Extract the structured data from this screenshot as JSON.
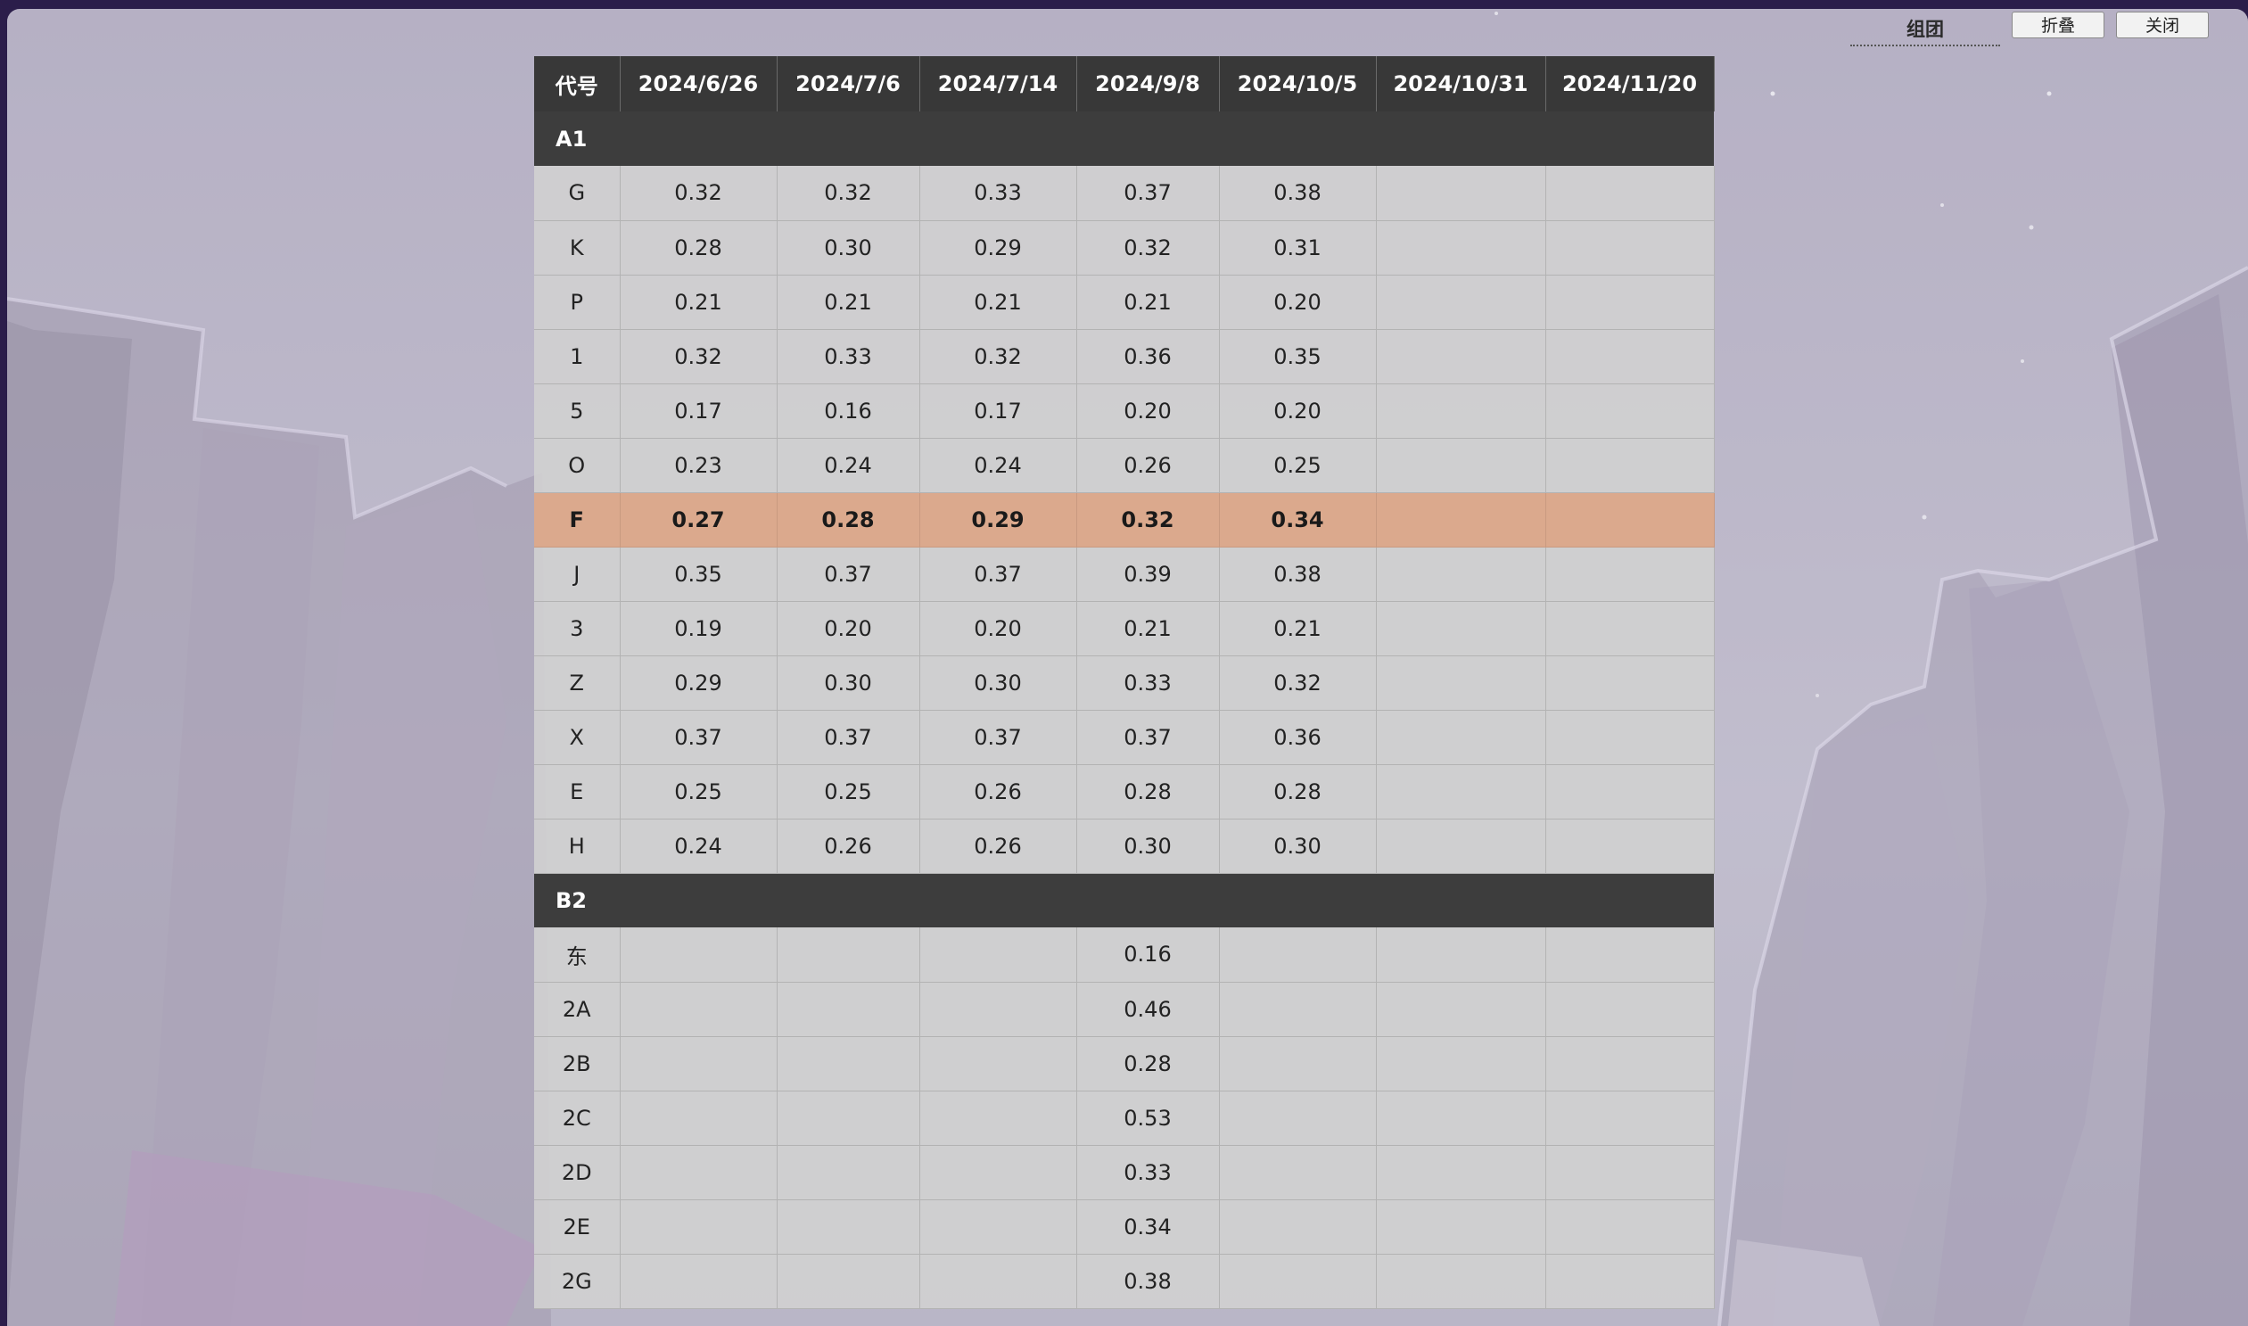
{
  "controls": {
    "group_label": "组团",
    "fold_label": "折叠",
    "close_label": "关闭"
  },
  "colors": {
    "header_bg": "#383838",
    "group_bg": "#3d3d3d",
    "row_bg": "#d0d0d0",
    "highlight_bg": "#dba98d"
  },
  "table": {
    "headers": [
      "代号",
      "2024/6/26",
      "2024/7/6",
      "2024/7/14",
      "2024/9/8",
      "2024/10/5",
      "2024/10/31",
      "2024/11/20"
    ],
    "groups": [
      {
        "name": "A1",
        "rows": [
          {
            "code": "G",
            "values": [
              "0.32",
              "0.32",
              "0.33",
              "0.37",
              "0.38",
              "",
              ""
            ]
          },
          {
            "code": "K",
            "values": [
              "0.28",
              "0.30",
              "0.29",
              "0.32",
              "0.31",
              "",
              ""
            ]
          },
          {
            "code": "P",
            "values": [
              "0.21",
              "0.21",
              "0.21",
              "0.21",
              "0.20",
              "",
              ""
            ]
          },
          {
            "code": "1",
            "values": [
              "0.32",
              "0.33",
              "0.32",
              "0.36",
              "0.35",
              "",
              ""
            ]
          },
          {
            "code": "5",
            "values": [
              "0.17",
              "0.16",
              "0.17",
              "0.20",
              "0.20",
              "",
              ""
            ]
          },
          {
            "code": "O",
            "values": [
              "0.23",
              "0.24",
              "0.24",
              "0.26",
              "0.25",
              "",
              ""
            ]
          },
          {
            "code": "F",
            "values": [
              "0.27",
              "0.28",
              "0.29",
              "0.32",
              "0.34",
              "",
              ""
            ],
            "highlight": true
          },
          {
            "code": "J",
            "values": [
              "0.35",
              "0.37",
              "0.37",
              "0.39",
              "0.38",
              "",
              ""
            ]
          },
          {
            "code": "3",
            "values": [
              "0.19",
              "0.20",
              "0.20",
              "0.21",
              "0.21",
              "",
              ""
            ]
          },
          {
            "code": "Z",
            "values": [
              "0.29",
              "0.30",
              "0.30",
              "0.33",
              "0.32",
              "",
              ""
            ]
          },
          {
            "code": "X",
            "values": [
              "0.37",
              "0.37",
              "0.37",
              "0.37",
              "0.36",
              "",
              ""
            ]
          },
          {
            "code": "E",
            "values": [
              "0.25",
              "0.25",
              "0.26",
              "0.28",
              "0.28",
              "",
              ""
            ]
          },
          {
            "code": "H",
            "values": [
              "0.24",
              "0.26",
              "0.26",
              "0.30",
              "0.30",
              "",
              ""
            ]
          }
        ]
      },
      {
        "name": "B2",
        "rows": [
          {
            "code": "东",
            "values": [
              "",
              "",
              "",
              "0.16",
              "",
              "",
              ""
            ]
          },
          {
            "code": "2A",
            "values": [
              "",
              "",
              "",
              "0.46",
              "",
              "",
              ""
            ]
          },
          {
            "code": "2B",
            "values": [
              "",
              "",
              "",
              "0.28",
              "",
              "",
              ""
            ]
          },
          {
            "code": "2C",
            "values": [
              "",
              "",
              "",
              "0.53",
              "",
              "",
              ""
            ]
          },
          {
            "code": "2D",
            "values": [
              "",
              "",
              "",
              "0.33",
              "",
              "",
              ""
            ]
          },
          {
            "code": "2E",
            "values": [
              "",
              "",
              "",
              "0.34",
              "",
              "",
              ""
            ]
          },
          {
            "code": "2G",
            "values": [
              "",
              "",
              "",
              "0.38",
              "",
              "",
              ""
            ]
          }
        ]
      }
    ]
  }
}
